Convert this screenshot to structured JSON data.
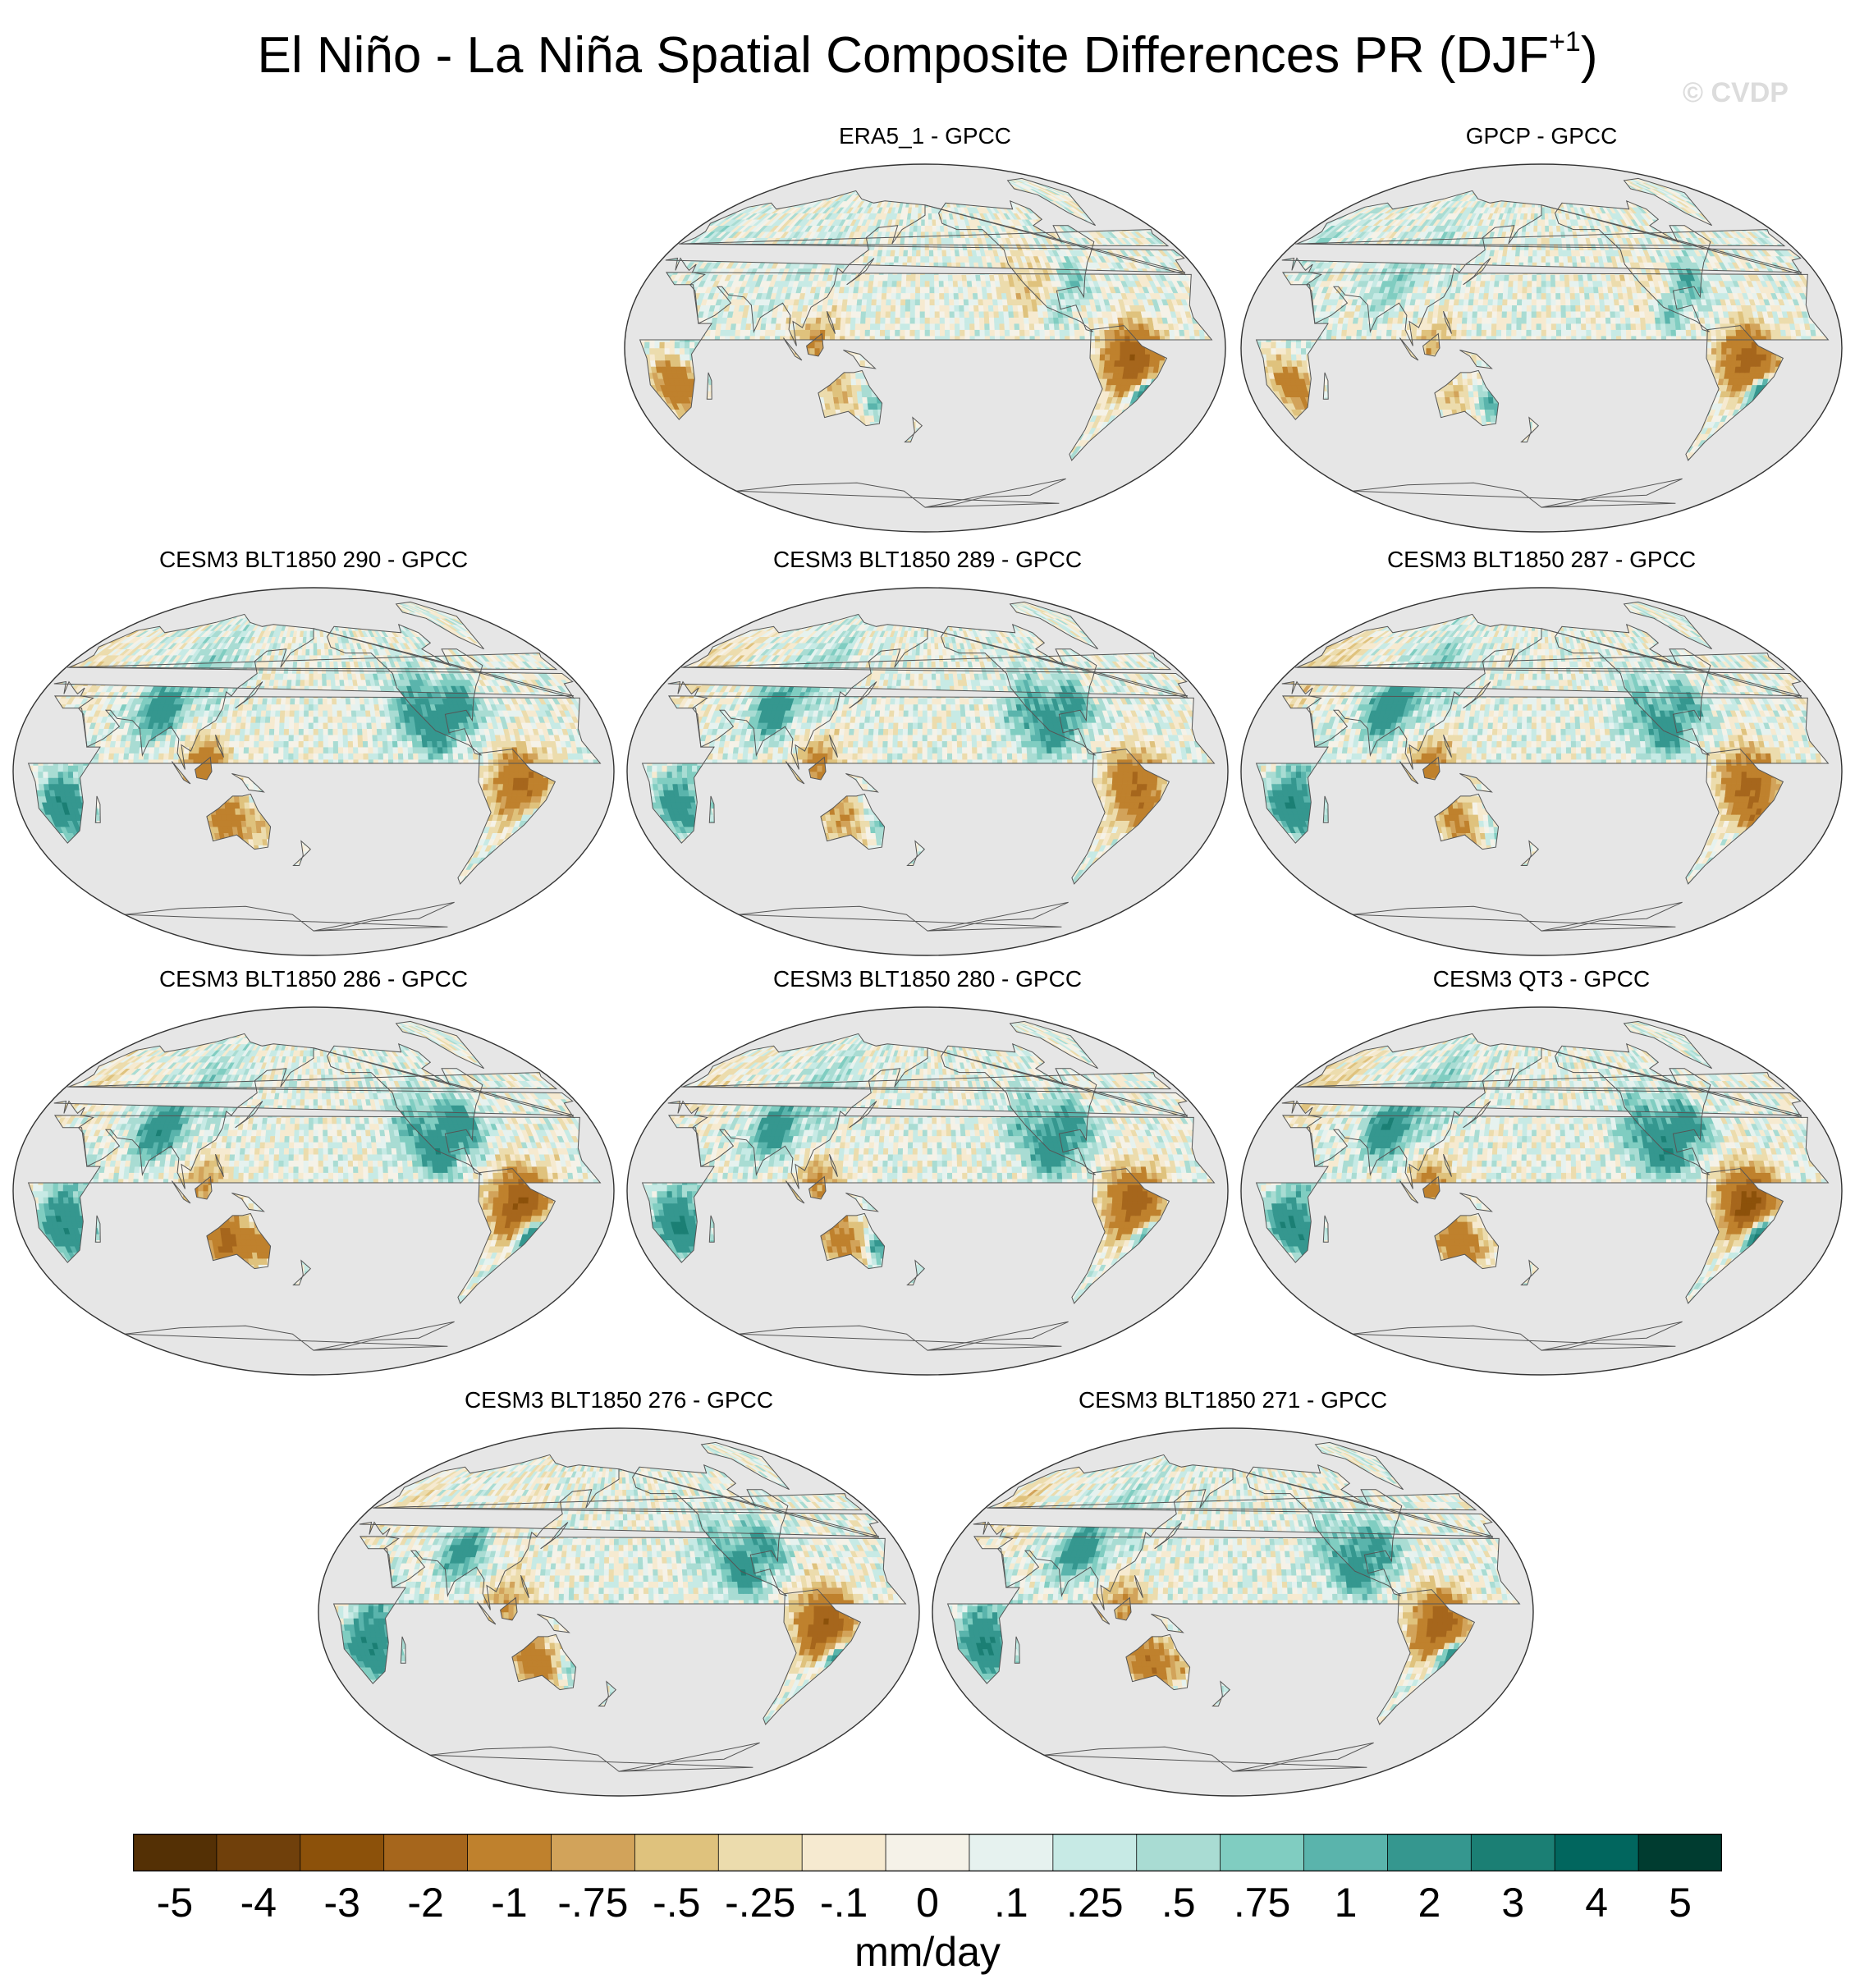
{
  "title": {
    "text": "El Niño - La Niña Spatial Composite Differences PR (DJF",
    "superscript": "+1",
    "close": ")"
  },
  "watermark": "© CVDP",
  "panels": [
    {
      "title": "ERA5_1 - GPCC",
      "pattern": 0
    },
    {
      "title": "GPCP - GPCC",
      "pattern": 1
    },
    {
      "title": "CESM3 BLT1850 290 - GPCC",
      "pattern": 2
    },
    {
      "title": "CESM3 BLT1850 289 - GPCC",
      "pattern": 3
    },
    {
      "title": "CESM3 BLT1850 287 - GPCC",
      "pattern": 4
    },
    {
      "title": "CESM3 BLT1850 286 - GPCC",
      "pattern": 5
    },
    {
      "title": "CESM3 BLT1850 280 - GPCC",
      "pattern": 6
    },
    {
      "title": "CESM3 QT3 - GPCC",
      "pattern": 7
    },
    {
      "title": "CESM3 BLT1850 276 - GPCC",
      "pattern": 8
    },
    {
      "title": "CESM3 BLT1850 271 - GPCC",
      "pattern": 9
    }
  ],
  "colorbar": {
    "colors": [
      "#543005",
      "#70400b",
      "#8c510a",
      "#a6661c",
      "#bf812d",
      "#d2a35a",
      "#dfc27d",
      "#ecdcad",
      "#f6ead0",
      "#f5f2e8",
      "#e6f2ef",
      "#c7eae5",
      "#a9dcd3",
      "#80cdc1",
      "#5ab4ac",
      "#35978f",
      "#1b7f74",
      "#01665e",
      "#003c30"
    ],
    "labels": [
      "-5",
      "-4",
      "-3",
      "-2",
      "-1",
      "-.75",
      "-.5",
      "-.25",
      "-.1",
      "0",
      ".1",
      ".25",
      ".5",
      ".75",
      "1",
      "2",
      "3",
      "4",
      "5"
    ],
    "units": "mm/day"
  },
  "map_style": {
    "ocean": "#e6e6e6",
    "outline": "#333333",
    "coast": "#555555"
  }
}
